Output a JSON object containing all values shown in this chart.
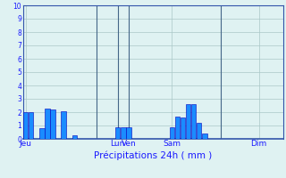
{
  "title": "Précipitations 24h ( mm )",
  "bar_color": "#1a8cff",
  "bar_edge_color": "#0000bb",
  "background_color": "#dff2f2",
  "grid_color": "#aac8c8",
  "text_color": "#1a1aff",
  "axis_line_color": "#3355aa",
  "vline_color": "#446688",
  "ylim": [
    0,
    10
  ],
  "yticks": [
    0,
    1,
    2,
    3,
    4,
    5,
    6,
    7,
    8,
    9,
    10
  ],
  "bar_positions": [
    0,
    1,
    3,
    4,
    5,
    7,
    9,
    17,
    18,
    19,
    27,
    28,
    29,
    30,
    31,
    32,
    33,
    34,
    43
  ],
  "bar_values": [
    2.0,
    2.0,
    0.8,
    2.3,
    2.2,
    2.1,
    0.3,
    0.9,
    0.9,
    0.85,
    0.85,
    1.7,
    1.6,
    2.6,
    2.6,
    1.2,
    0.4,
    0.0,
    0.0
  ],
  "day_tick_positions": [
    0,
    17,
    19,
    27,
    43
  ],
  "day_tick_labels": [
    "Jeu",
    "Lun",
    "Ven",
    "Sam",
    "Dim"
  ],
  "vline_positions": [
    13,
    17,
    19,
    36
  ],
  "total_bars": 48,
  "bar_width": 0.9
}
